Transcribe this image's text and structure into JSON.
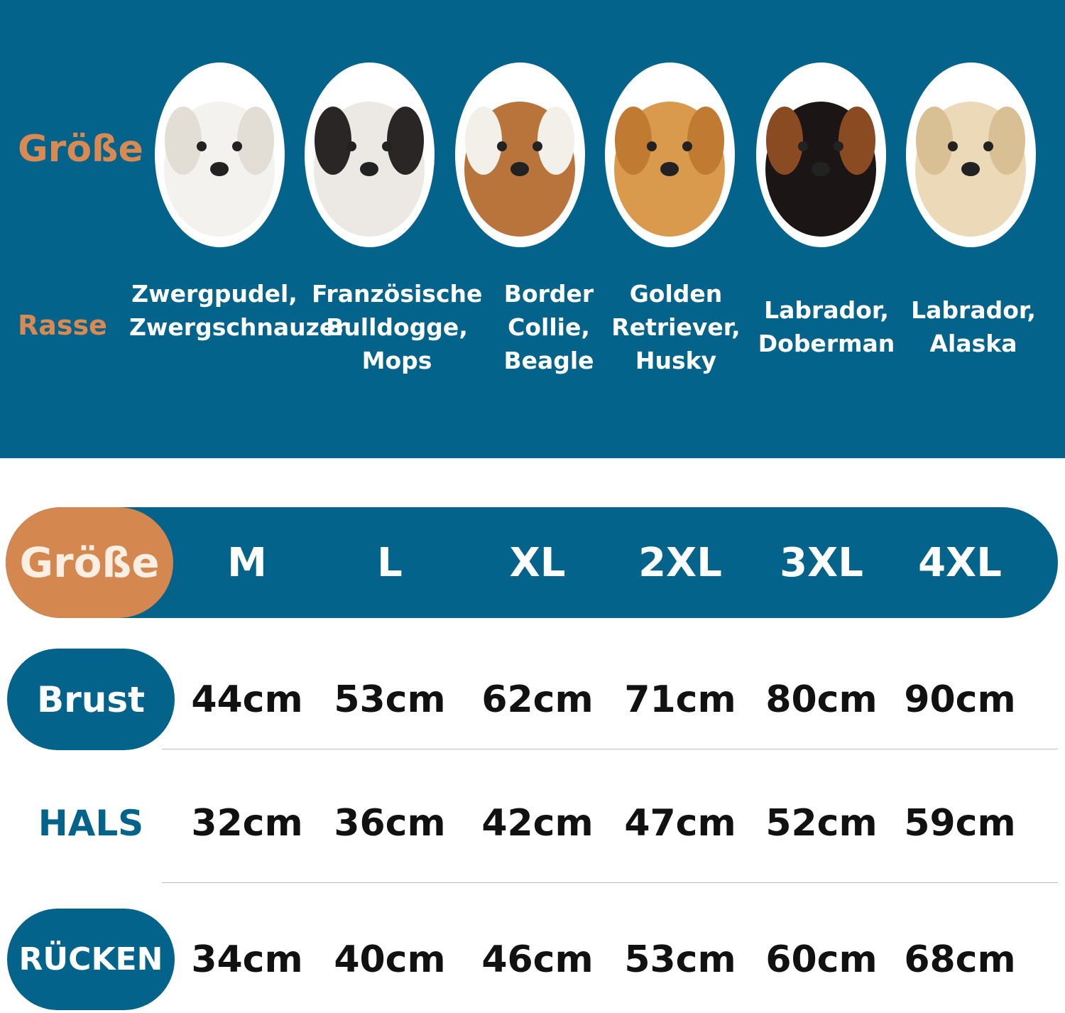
{
  "top": {
    "size_label": "Größe",
    "breed_label": "Rasse",
    "dogs": [
      {
        "icon": "bichon-dog-photo",
        "breeds": "Zwergpudel,\nZwergschnauzer",
        "fur": "#f4f2ee",
        "accent": "#e2ded6"
      },
      {
        "icon": "french-bulldog-photo",
        "breeds": "Französische\nBulldogge,\nMops",
        "fur": "#ece9e4",
        "accent": "#2a2626"
      },
      {
        "icon": "beagle-dog-photo",
        "breeds": "Border\nCollie,\nBeagle",
        "fur": "#b8743a",
        "accent": "#f3f0ea"
      },
      {
        "icon": "golden-retriever-photo",
        "breeds": "Golden\nRetriever,\nHusky",
        "fur": "#d99a4e",
        "accent": "#c07a32"
      },
      {
        "icon": "doberman-dog-photo",
        "breeds": "Labrador,\nDoberman",
        "fur": "#1b1615",
        "accent": "#8a4a22"
      },
      {
        "icon": "labrador-dog-photo",
        "breeds": "Labrador,\nAlaska",
        "fur": "#ecd9b8",
        "accent": "#d8bf94"
      }
    ]
  },
  "table": {
    "header_label": "Größe",
    "sizes": [
      "M",
      "L",
      "XL",
      "2XL",
      "3XL",
      "4XL"
    ],
    "rows": [
      {
        "label": "Brust",
        "style": "pill",
        "values": [
          "44cm",
          "53cm",
          "62cm",
          "71cm",
          "80cm",
          "90cm"
        ]
      },
      {
        "label": "HALS",
        "style": "text",
        "values": [
          "32cm",
          "36cm",
          "42cm",
          "47cm",
          "52cm",
          "59cm"
        ]
      },
      {
        "label": "RÜCKEN",
        "style": "pill",
        "values": [
          "34cm",
          "40cm",
          "46cm",
          "53cm",
          "60cm",
          "68cm"
        ]
      }
    ]
  },
  "colors": {
    "blue": "#04638a",
    "orange": "#d4874f"
  }
}
